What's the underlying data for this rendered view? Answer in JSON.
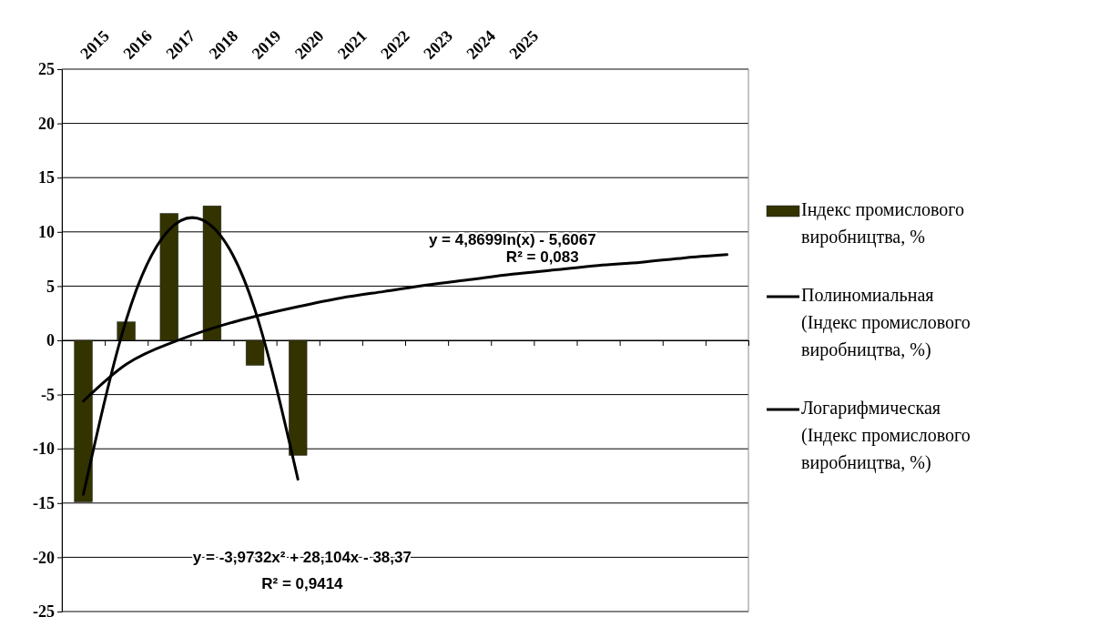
{
  "chart_data": {
    "type": "bar",
    "categories": [
      "2015",
      "2016",
      "2017",
      "2018",
      "2019",
      "2020",
      "2021",
      "2022",
      "2023",
      "2024",
      "2025",
      null,
      null,
      null,
      null,
      null
    ],
    "series": [
      {
        "name": "Індекс промислового виробництва, %",
        "color": "#333300",
        "values": [
          -14.9,
          1.7,
          11.7,
          12.4,
          -2.3,
          -10.6,
          null,
          null,
          null,
          null,
          null,
          null,
          null,
          null,
          null,
          null
        ]
      },
      {
        "name": "Полиномиальная (Індекс промислового виробництва, %)",
        "type": "line",
        "color": "#000000",
        "values": [
          -14.2,
          1.9,
          10.2,
          10.5,
          2.8,
          -12.8,
          null,
          null,
          null,
          null,
          null,
          null,
          null,
          null,
          null,
          null
        ]
      },
      {
        "name": "Логарифмическая (Індекс промислового виробництва, %)",
        "type": "line",
        "color": "#000000",
        "values": [
          -5.6,
          -2.2,
          -0.3,
          1.1,
          2.2,
          3.1,
          3.9,
          4.5,
          5.1,
          5.6,
          6.1,
          6.5,
          6.9,
          7.2,
          7.6,
          7.9
        ]
      }
    ],
    "ylim": [
      -25,
      25
    ],
    "yticks": [
      -25,
      -20,
      -15,
      -10,
      -5,
      0,
      5,
      10,
      15,
      20,
      25
    ],
    "grid": "y",
    "legend": "right",
    "marker": "none",
    "line_style": "solid",
    "annotations": [
      "y = 4,8699ln(x) - 5,6067",
      "R² = 0,083",
      "y = -3,9732x² + 28,104x - 38,37",
      "R² = 0,9414"
    ]
  }
}
